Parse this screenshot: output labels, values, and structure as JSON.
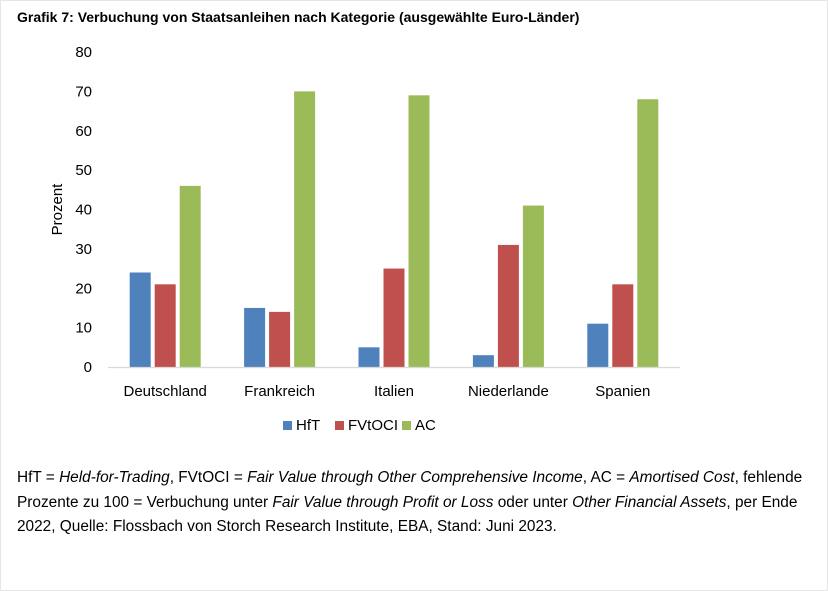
{
  "title": "Grafik 7: Verbuchung von Staatsanleihen nach Kategorie (ausgewählte Euro-Länder)",
  "chart_data": {
    "type": "bar",
    "categories": [
      "Deutschland",
      "Frankreich",
      "Italien",
      "Niederlande",
      "Spanien"
    ],
    "series": [
      {
        "name": "HfT",
        "color": "#4f81bd",
        "values": [
          24,
          15,
          5,
          3,
          11
        ]
      },
      {
        "name": "FVtOCI",
        "color": "#c0504d",
        "values": [
          21,
          14,
          25,
          31,
          21
        ]
      },
      {
        "name": "AC",
        "color": "#9bbb59",
        "values": [
          46,
          70,
          69,
          41,
          68
        ]
      }
    ],
    "ylabel": "Prozent",
    "ylim": [
      0,
      80
    ],
    "yticks": [
      0,
      10,
      20,
      30,
      40,
      50,
      60,
      70,
      80
    ],
    "grid": false,
    "legend_position": "bottom"
  },
  "footnote": {
    "p1": "HfT = ",
    "p2": "Held-for-Trading",
    "p3": ", FVtOCI = ",
    "p4": "Fair Value through Other Comprehensive Income",
    "p5": ", AC = ",
    "p6": "Amortised Cost",
    "p7": ", fehlende Prozente zu 100 = Verbuchung unter ",
    "p8": "Fair Value through Profit or Loss",
    "p9": " oder unter ",
    "p10": "Other Financial Assets",
    "p11": ", per Ende 2022, Quelle: Flossbach von Storch Research Institute, EBA, Stand: Juni 2023."
  }
}
